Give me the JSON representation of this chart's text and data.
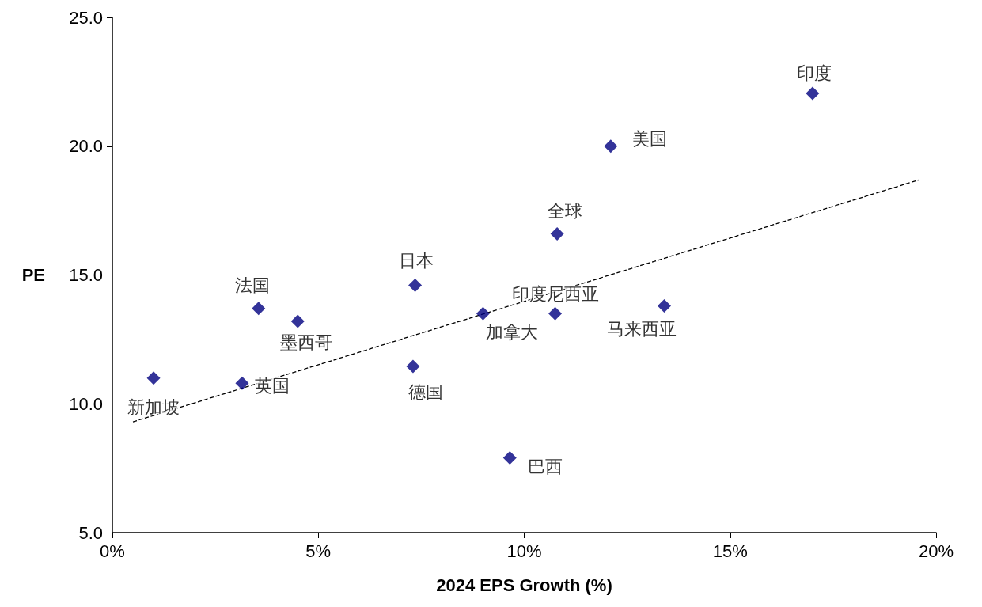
{
  "chart_data": {
    "type": "scatter",
    "xlabel": "2024 EPS Growth (%)",
    "ylabel": "PE",
    "grid": false,
    "marker": "diamond",
    "xlim": [
      0,
      20
    ],
    "xticks": [
      {
        "value": 0,
        "label": "0%"
      },
      {
        "value": 5,
        "label": "5%"
      },
      {
        "value": 10,
        "label": "10%"
      },
      {
        "value": 15,
        "label": "15%"
      },
      {
        "value": 20,
        "label": "20%"
      }
    ],
    "ylim": [
      5,
      25
    ],
    "yticks": [
      {
        "value": 5,
        "label": "5.0"
      },
      {
        "value": 10,
        "label": "10.0"
      },
      {
        "value": 15,
        "label": "15.0"
      },
      {
        "value": 20,
        "label": "20.0"
      },
      {
        "value": 25,
        "label": "25.0"
      }
    ],
    "series": [
      {
        "color": "#000080",
        "x": [
          1.0,
          3.15,
          3.55,
          4.5,
          7.35,
          7.3,
          9.0,
          9.65,
          10.75,
          10.8,
          12.1,
          13.4,
          17.0
        ],
        "values": [
          11.0,
          10.8,
          13.7,
          13.2,
          14.6,
          11.45,
          13.5,
          7.9,
          13.5,
          16.6,
          20.0,
          13.8,
          22.05
        ]
      },
      {
        "type": "line",
        "color": "#000000",
        "line_style": "dashed",
        "marker": "none",
        "x": [
          0.5,
          19.6
        ],
        "values": [
          9.3,
          18.7
        ]
      }
    ],
    "annotations": [
      {
        "text": "新加坡",
        "x": 1.0,
        "y": 11.0
      },
      {
        "text": "英国",
        "x": 3.15,
        "y": 10.8
      },
      {
        "text": "法国",
        "x": 3.55,
        "y": 13.7
      },
      {
        "text": "墨西哥",
        "x": 4.5,
        "y": 13.2
      },
      {
        "text": "日本",
        "x": 7.35,
        "y": 14.6
      },
      {
        "text": "德国",
        "x": 7.3,
        "y": 11.45
      },
      {
        "text": "加拿大",
        "x": 9.0,
        "y": 13.5
      },
      {
        "text": "巴西",
        "x": 9.65,
        "y": 7.9
      },
      {
        "text": "印度尼西亚",
        "x": 10.75,
        "y": 13.5
      },
      {
        "text": "全球",
        "x": 10.8,
        "y": 16.6
      },
      {
        "text": "美国",
        "x": 12.1,
        "y": 20.0
      },
      {
        "text": "马来西亚",
        "x": 13.4,
        "y": 13.8
      },
      {
        "text": "印度",
        "x": 17.0,
        "y": 22.05
      }
    ]
  }
}
